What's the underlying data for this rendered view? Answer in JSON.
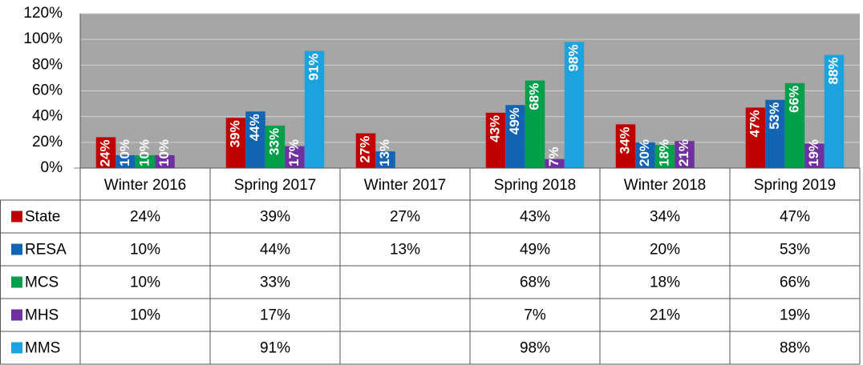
{
  "chart_data": {
    "type": "bar",
    "categories": [
      "Winter 2016",
      "Spring 2017",
      "Winter 2017",
      "Spring 2018",
      "Winter 2018",
      "Spring 2019"
    ],
    "series": [
      {
        "name": "State",
        "color": "#c00000",
        "values": [
          24,
          39,
          27,
          43,
          34,
          47
        ],
        "value_labels": [
          "24%",
          "39%",
          "27%",
          "43%",
          "34%",
          "47%"
        ]
      },
      {
        "name": "RESA",
        "color": "#1464b4",
        "values": [
          10,
          44,
          13,
          49,
          20,
          53
        ],
        "value_labels": [
          "10%",
          "44%",
          "13%",
          "49%",
          "20%",
          "53%"
        ]
      },
      {
        "name": "MCS",
        "color": "#00a04a",
        "values": [
          10,
          33,
          null,
          68,
          18,
          66
        ],
        "value_labels": [
          "10%",
          "33%",
          null,
          "68%",
          "18%",
          "66%"
        ]
      },
      {
        "name": "MHS",
        "color": "#7030a0",
        "values": [
          10,
          17,
          null,
          7,
          21,
          19
        ],
        "value_labels": [
          "10%",
          "17%",
          null,
          "7%",
          "21%",
          "19%"
        ]
      },
      {
        "name": "MMS",
        "color": "#1aa3de",
        "values": [
          null,
          91,
          null,
          98,
          null,
          88
        ],
        "value_labels": [
          null,
          "91%",
          null,
          "98%",
          null,
          "88%"
        ]
      }
    ],
    "ylim": [
      0,
      120
    ],
    "yticks": [
      {
        "value": 0,
        "label": "0%"
      },
      {
        "value": 20,
        "label": "20%"
      },
      {
        "value": 40,
        "label": "40%"
      },
      {
        "value": 60,
        "label": "60%"
      },
      {
        "value": 80,
        "label": "80%"
      },
      {
        "value": 100,
        "label": "100%"
      },
      {
        "value": 120,
        "label": "120%"
      }
    ],
    "grid": true
  }
}
